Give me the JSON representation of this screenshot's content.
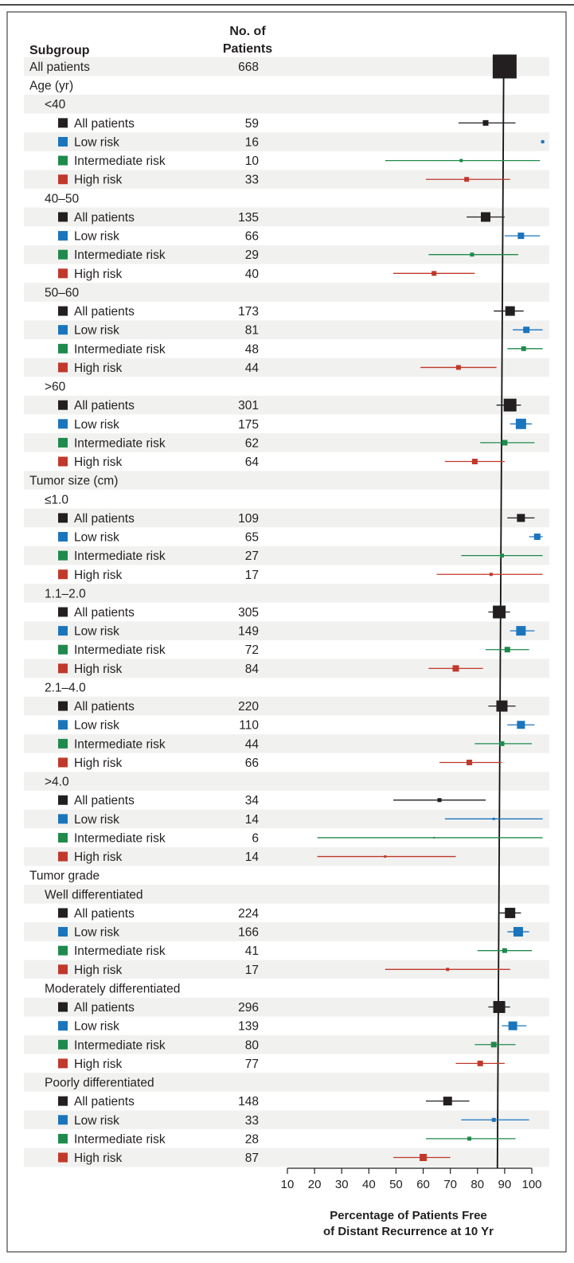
{
  "header": {
    "subgroup": "Subgroup",
    "patients_line1": "No. of",
    "patients_line2": "Patients"
  },
  "chart_data": {
    "type": "forest",
    "xlabel_line1": "Percentage of Patients Free",
    "xlabel_line2": "of Distant Recurrence at 10 Yr",
    "xlim": [
      10,
      100
    ],
    "xticks": [
      10,
      20,
      30,
      40,
      50,
      60,
      70,
      80,
      90,
      100
    ],
    "reference_line": 88.5,
    "colors": {
      "All patients": "#231f20",
      "Low risk": "#1b75bc",
      "Intermediate risk": "#1f8a4c",
      "High risk": "#c0392b"
    },
    "rows": [
      {
        "label": "All patients",
        "level": 0,
        "n": "668",
        "est": 90,
        "lo": 86,
        "hi": 94,
        "size": 30
      },
      {
        "label": "Age (yr)",
        "level": 0
      },
      {
        "label": "<40",
        "level": 1
      },
      {
        "label": "All patients",
        "level": 2,
        "group": "All patients",
        "n": "59",
        "est": 83,
        "lo": 73,
        "hi": 94,
        "size": 7
      },
      {
        "label": "Low risk",
        "level": 2,
        "group": "Low risk",
        "n": "16",
        "est": 104,
        "lo": 104,
        "hi": 104,
        "size": 4
      },
      {
        "label": "Intermediate risk",
        "level": 2,
        "group": "Intermediate risk",
        "n": "10",
        "est": 74,
        "lo": 46,
        "hi": 103,
        "size": 4
      },
      {
        "label": "High risk",
        "level": 2,
        "group": "High risk",
        "n": "33",
        "est": 76,
        "lo": 61,
        "hi": 92,
        "size": 6
      },
      {
        "label": "40–50",
        "level": 1
      },
      {
        "label": "All patients",
        "level": 2,
        "group": "All patients",
        "n": "135",
        "est": 83,
        "lo": 76,
        "hi": 90,
        "size": 12
      },
      {
        "label": "Low risk",
        "level": 2,
        "group": "Low risk",
        "n": "66",
        "est": 96,
        "lo": 90,
        "hi": 103,
        "size": 8
      },
      {
        "label": "Intermediate risk",
        "level": 2,
        "group": "Intermediate risk",
        "n": "29",
        "est": 78,
        "lo": 62,
        "hi": 95,
        "size": 5
      },
      {
        "label": "High risk",
        "level": 2,
        "group": "High risk",
        "n": "40",
        "est": 64,
        "lo": 49,
        "hi": 79,
        "size": 6
      },
      {
        "label": "50–60",
        "level": 1
      },
      {
        "label": "All patients",
        "level": 2,
        "group": "All patients",
        "n": "173",
        "est": 92,
        "lo": 86,
        "hi": 97,
        "size": 12
      },
      {
        "label": "Low risk",
        "level": 2,
        "group": "Low risk",
        "n": "81",
        "est": 98,
        "lo": 93,
        "hi": 104,
        "size": 8
      },
      {
        "label": "Intermediate risk",
        "level": 2,
        "group": "Intermediate risk",
        "n": "48",
        "est": 97,
        "lo": 91,
        "hi": 104,
        "size": 6
      },
      {
        "label": "High risk",
        "level": 2,
        "group": "High risk",
        "n": "44",
        "est": 73,
        "lo": 59,
        "hi": 87,
        "size": 6
      },
      {
        "label": ">60",
        "level": 1
      },
      {
        "label": "All patients",
        "level": 2,
        "group": "All patients",
        "n": "301",
        "est": 92,
        "lo": 87,
        "hi": 96,
        "size": 16
      },
      {
        "label": "Low risk",
        "level": 2,
        "group": "Low risk",
        "n": "175",
        "est": 96,
        "lo": 92,
        "hi": 100,
        "size": 13
      },
      {
        "label": "Intermediate risk",
        "level": 2,
        "group": "Intermediate risk",
        "n": "62",
        "est": 90,
        "lo": 81,
        "hi": 101,
        "size": 7
      },
      {
        "label": "High risk",
        "level": 2,
        "group": "High risk",
        "n": "64",
        "est": 79,
        "lo": 68,
        "hi": 90,
        "size": 7
      },
      {
        "label": "Tumor size (cm)",
        "level": 0
      },
      {
        "label": "≤1.0",
        "level": 1
      },
      {
        "label": "All patients",
        "level": 2,
        "group": "All patients",
        "n": "109",
        "est": 96,
        "lo": 91,
        "hi": 101,
        "size": 10
      },
      {
        "label": "Low risk",
        "level": 2,
        "group": "Low risk",
        "n": "65",
        "est": 102,
        "lo": 99,
        "hi": 104,
        "size": 8
      },
      {
        "label": "Intermediate risk",
        "level": 2,
        "group": "Intermediate risk",
        "n": "27",
        "est": 89,
        "lo": 74,
        "hi": 104,
        "size": 5
      },
      {
        "label": "High risk",
        "level": 2,
        "group": "High risk",
        "n": "17",
        "est": 85,
        "lo": 65,
        "hi": 104,
        "size": 4
      },
      {
        "label": "1.1–2.0",
        "level": 1
      },
      {
        "label": "All patients",
        "level": 2,
        "group": "All patients",
        "n": "305",
        "est": 88,
        "lo": 84,
        "hi": 92,
        "size": 16
      },
      {
        "label": "Low risk",
        "level": 2,
        "group": "Low risk",
        "n": "149",
        "est": 96,
        "lo": 92,
        "hi": 101,
        "size": 12
      },
      {
        "label": "Intermediate risk",
        "level": 2,
        "group": "Intermediate risk",
        "n": "72",
        "est": 91,
        "lo": 83,
        "hi": 99,
        "size": 7
      },
      {
        "label": "High risk",
        "level": 2,
        "group": "High risk",
        "n": "84",
        "est": 72,
        "lo": 62,
        "hi": 82,
        "size": 8
      },
      {
        "label": "2.1–4.0",
        "level": 1
      },
      {
        "label": "All patients",
        "level": 2,
        "group": "All patients",
        "n": "220",
        "est": 89,
        "lo": 84,
        "hi": 94,
        "size": 14
      },
      {
        "label": "Low risk",
        "level": 2,
        "group": "Low risk",
        "n": "110",
        "est": 96,
        "lo": 91,
        "hi": 101,
        "size": 10
      },
      {
        "label": "Intermediate risk",
        "level": 2,
        "group": "Intermediate risk",
        "n": "44",
        "est": 89,
        "lo": 79,
        "hi": 100,
        "size": 6
      },
      {
        "label": "High risk",
        "level": 2,
        "group": "High risk",
        "n": "66",
        "est": 77,
        "lo": 66,
        "hi": 89,
        "size": 7
      },
      {
        "label": ">4.0",
        "level": 1
      },
      {
        "label": "All patients",
        "level": 2,
        "group": "All patients",
        "n": "34",
        "est": 66,
        "lo": 49,
        "hi": 83,
        "size": 5
      },
      {
        "label": "Low risk",
        "level": 2,
        "group": "Low risk",
        "n": "14",
        "est": 86,
        "lo": 68,
        "hi": 104,
        "size": 3
      },
      {
        "label": "Intermediate risk",
        "level": 2,
        "group": "Intermediate risk",
        "n": "6",
        "est": 64,
        "lo": 21,
        "hi": 104,
        "size": 2
      },
      {
        "label": "High risk",
        "level": 2,
        "group": "High risk",
        "n": "14",
        "est": 46,
        "lo": 21,
        "hi": 72,
        "size": 3
      },
      {
        "label": "Tumor grade",
        "level": 0
      },
      {
        "label": "Well differentiated",
        "level": 1
      },
      {
        "label": "All patients",
        "level": 2,
        "group": "All patients",
        "n": "224",
        "est": 92,
        "lo": 88,
        "hi": 96,
        "size": 13
      },
      {
        "label": "Low risk",
        "level": 2,
        "group": "Low risk",
        "n": "166",
        "est": 95,
        "lo": 91,
        "hi": 99,
        "size": 12
      },
      {
        "label": "Intermediate risk",
        "level": 2,
        "group": "Intermediate risk",
        "n": "41",
        "est": 90,
        "lo": 80,
        "hi": 100,
        "size": 6
      },
      {
        "label": "High risk",
        "level": 2,
        "group": "High risk",
        "n": "17",
        "est": 69,
        "lo": 46,
        "hi": 92,
        "size": 4
      },
      {
        "label": "Moderately differentiated",
        "level": 1
      },
      {
        "label": "All patients",
        "level": 2,
        "group": "All patients",
        "n": "296",
        "est": 88,
        "lo": 84,
        "hi": 92,
        "size": 15
      },
      {
        "label": "Low risk",
        "level": 2,
        "group": "Low risk",
        "n": "139",
        "est": 93,
        "lo": 89,
        "hi": 98,
        "size": 11
      },
      {
        "label": "Intermediate risk",
        "level": 2,
        "group": "Intermediate risk",
        "n": "80",
        "est": 86,
        "lo": 79,
        "hi": 94,
        "size": 7
      },
      {
        "label": "High risk",
        "level": 2,
        "group": "High risk",
        "n": "77",
        "est": 81,
        "lo": 72,
        "hi": 90,
        "size": 7
      },
      {
        "label": "Poorly differentiated",
        "level": 1
      },
      {
        "label": "All patients",
        "level": 2,
        "group": "All patients",
        "n": "148",
        "est": 69,
        "lo": 61,
        "hi": 77,
        "size": 11
      },
      {
        "label": "Low risk",
        "level": 2,
        "group": "Low risk",
        "n": "33",
        "est": 86,
        "lo": 74,
        "hi": 99,
        "size": 5
      },
      {
        "label": "Intermediate risk",
        "level": 2,
        "group": "Intermediate risk",
        "n": "28",
        "est": 77,
        "lo": 61,
        "hi": 94,
        "size": 5
      },
      {
        "label": "High risk",
        "level": 2,
        "group": "High risk",
        "n": "87",
        "est": 60,
        "lo": 49,
        "hi": 70,
        "size": 9
      }
    ]
  }
}
